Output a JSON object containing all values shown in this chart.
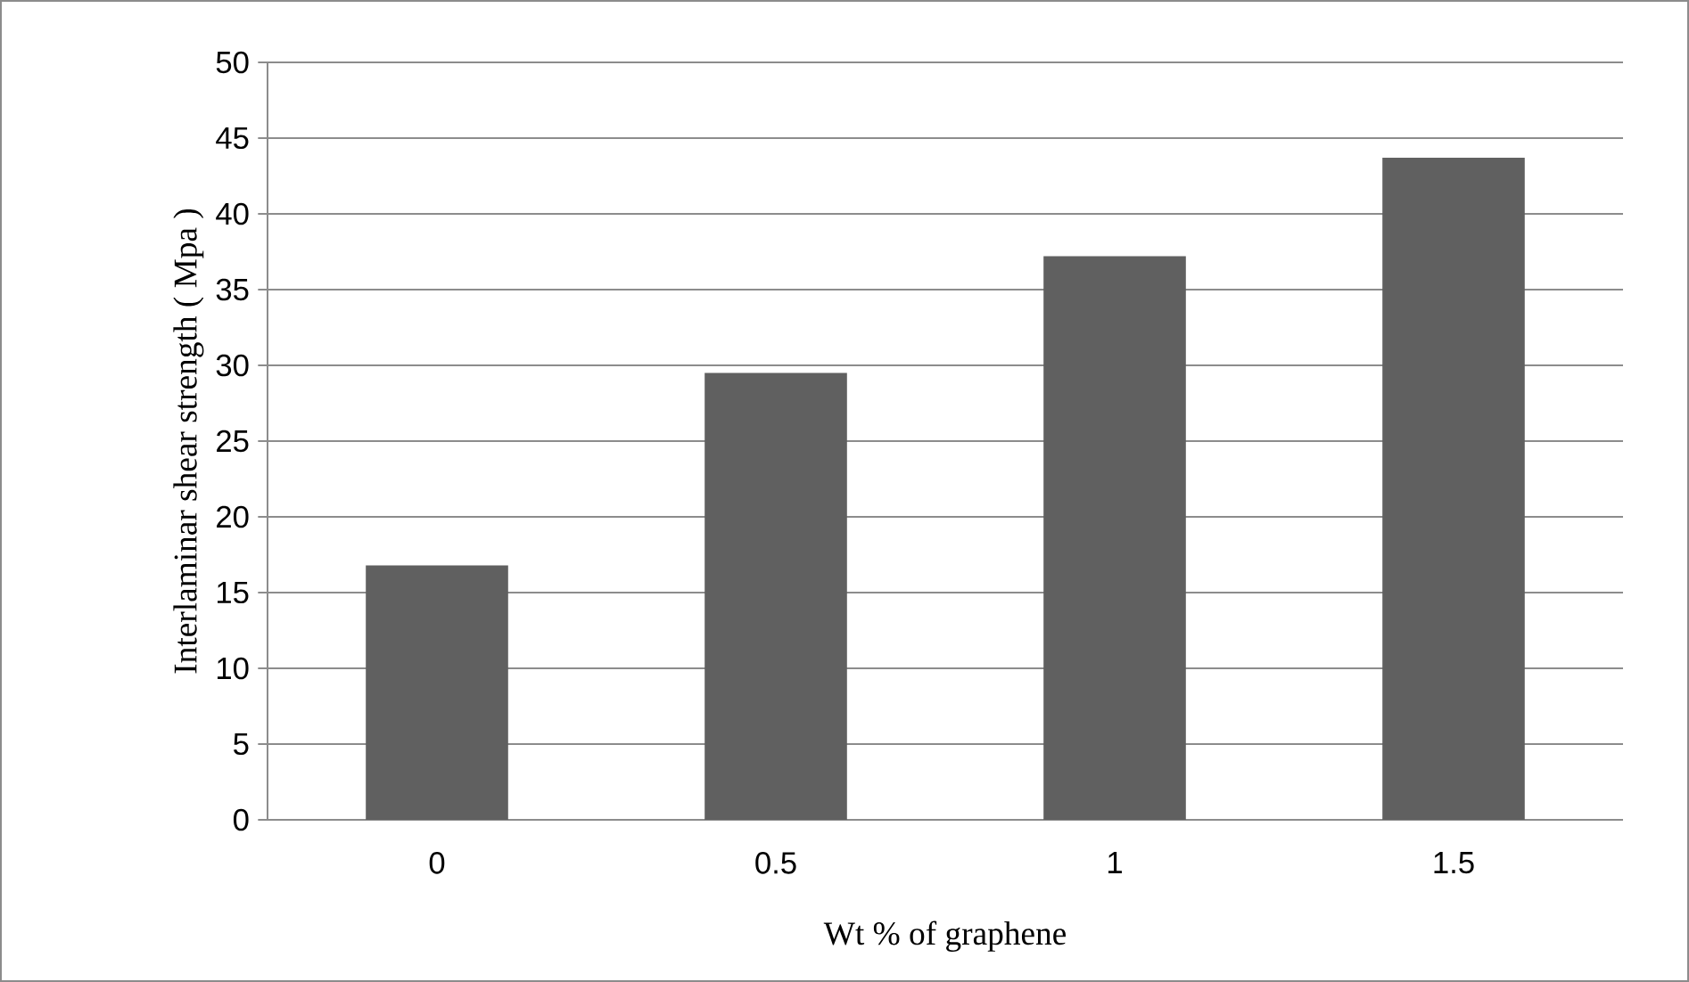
{
  "chart_data": {
    "type": "bar",
    "xlabel": "Wt % of graphene",
    "ylabel": "Interlaminar shear strength ( Mpa )",
    "categories": [
      "0",
      "0.5",
      "1",
      "1.5"
    ],
    "values": [
      16.8,
      29.5,
      37.2,
      43.7
    ],
    "color": "#606060",
    "ylim": [
      0,
      50
    ],
    "yticks": [
      0,
      5,
      10,
      15,
      20,
      25,
      30,
      35,
      40,
      45,
      50
    ],
    "grid": "y"
  }
}
